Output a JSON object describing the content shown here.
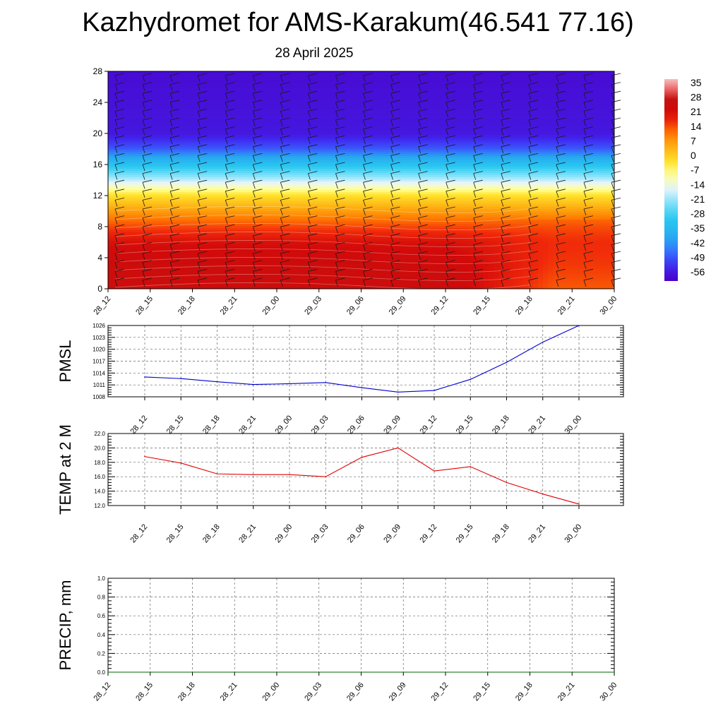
{
  "header": {
    "title": "Kazhydromet for AMS-Karakum(46.541 77.16)",
    "subtitle": "28 April 2025"
  },
  "colors": {
    "pmsl_line": "#0000cc",
    "temp_line": "#e00000",
    "precip_line": "#006400",
    "grid": "#666666"
  },
  "chart_data": [
    {
      "type": "heatmap",
      "title": "",
      "x_tick_labels": [
        "28_12",
        "28_15",
        "28_18",
        "28_21",
        "29_00",
        "29_03",
        "29_06",
        "29_09",
        "29_12",
        "29_15",
        "29_18",
        "29_21",
        "30_00"
      ],
      "y_ticks": [
        0,
        4,
        8,
        12,
        16,
        20,
        24,
        28
      ],
      "ylim": [
        0,
        28
      ],
      "colorbar_labels": [
        "35",
        "28",
        "21",
        "14",
        "7",
        "0",
        "-7",
        "-14",
        "-21",
        "-28",
        "-35",
        "-42",
        "-49",
        "-56"
      ],
      "colorbar_range": [
        -60,
        38
      ],
      "temperature_profile": [
        {
          "y": 0,
          "value": 24
        },
        {
          "y": 3,
          "value": 24
        },
        {
          "y": 6,
          "value": 21
        },
        {
          "y": 9,
          "value": 12
        },
        {
          "y": 12,
          "value": -2
        },
        {
          "y": 14,
          "value": -18
        },
        {
          "y": 16,
          "value": -32
        },
        {
          "y": 18,
          "value": -48
        },
        {
          "y": 20,
          "value": -56
        },
        {
          "y": 28,
          "value": -58
        }
      ],
      "late_period_warm_shift": {
        "from_x": "29_12",
        "to_x": "30_00",
        "value": 14
      },
      "has_wind_barbs": true
    },
    {
      "type": "line",
      "ylabel": "PMSL",
      "x_tick_labels": [
        "28_12",
        "28_15",
        "28_18",
        "28_21",
        "29_00",
        "29_03",
        "29_06",
        "29_09",
        "29_12",
        "29_15",
        "29_18",
        "29_21",
        "30_00"
      ],
      "y_ticks": [
        1008,
        1011,
        1014,
        1017,
        1020,
        1023,
        1026
      ],
      "ylim": [
        1008,
        1026
      ],
      "series": [
        {
          "values": [
            1013.0,
            1012.6,
            1011.8,
            1011.1,
            1011.3,
            1011.6,
            1010.3,
            1009.2,
            1009.6,
            1012.4,
            1016.7,
            1021.8,
            1026.0
          ]
        }
      ]
    },
    {
      "type": "line",
      "ylabel": "TEMP at 2 M",
      "x_tick_labels": [
        "28_12",
        "28_15",
        "28_18",
        "28_21",
        "29_00",
        "29_03",
        "29_06",
        "29_09",
        "29_12",
        "29_15",
        "29_18",
        "29_21",
        "30_00"
      ],
      "y_ticks": [
        "12.0",
        "14.0",
        "16.0",
        "18.0",
        "20.0",
        "22.0"
      ],
      "ylim": [
        12,
        22
      ],
      "series": [
        {
          "values": [
            18.8,
            17.9,
            16.4,
            16.3,
            16.3,
            16.0,
            18.7,
            20.0,
            16.8,
            17.4,
            15.2,
            13.6,
            12.2
          ]
        }
      ]
    },
    {
      "type": "line",
      "ylabel": "PRECIP, mm",
      "x_tick_labels": [
        "28_12",
        "28_15",
        "28_18",
        "28_21",
        "29_00",
        "29_03",
        "29_06",
        "29_09",
        "29_12",
        "29_15",
        "29_18",
        "29_21",
        "30_00"
      ],
      "y_ticks": [
        "0.0",
        "0.2",
        "0.4",
        "0.6",
        "0.8",
        "1.0"
      ],
      "ylim": [
        0,
        1
      ],
      "series": [
        {
          "values": [
            0,
            0,
            0,
            0,
            0,
            0,
            0,
            0,
            0,
            0,
            0,
            0,
            0
          ]
        }
      ]
    }
  ]
}
